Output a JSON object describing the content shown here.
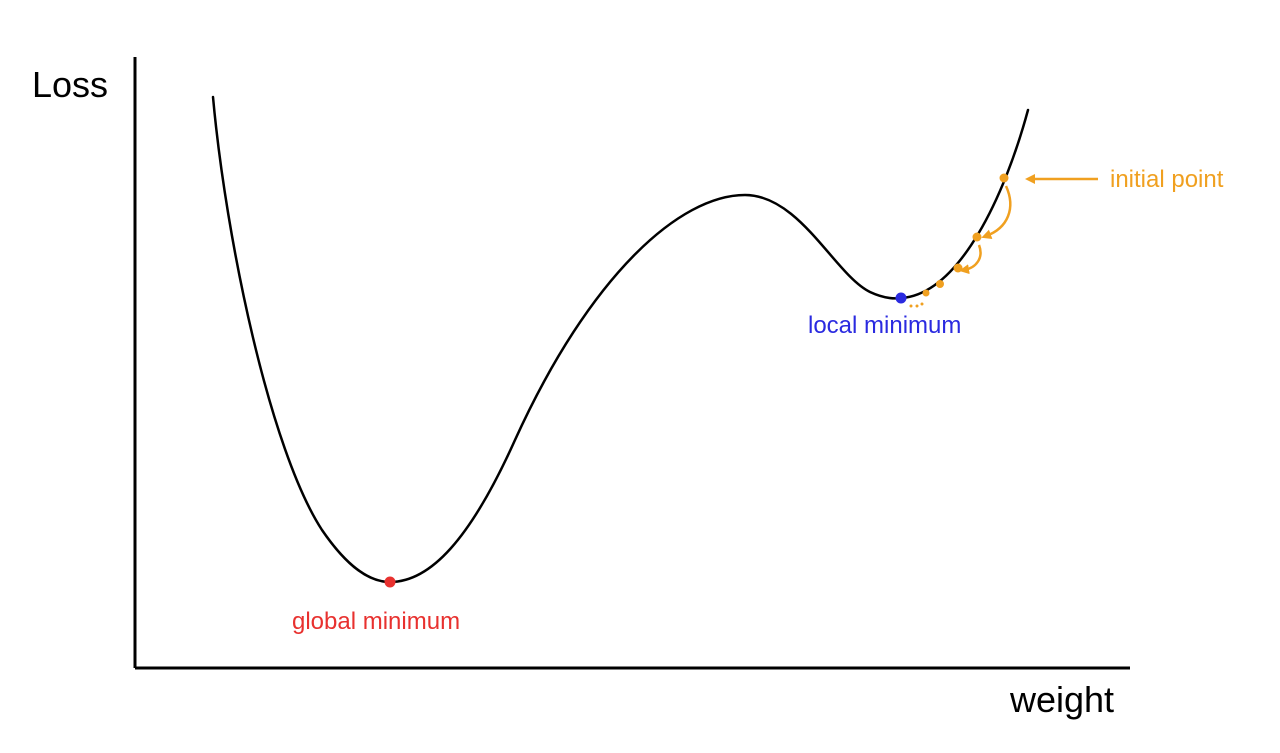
{
  "diagram": {
    "axes": {
      "y_label": "Loss",
      "x_label": "weight"
    },
    "annotations": {
      "global_minimum": "global minimum",
      "local_minimum": "local minimum",
      "initial_point": "initial point"
    },
    "colors": {
      "curve": "#000000",
      "axes": "#000000",
      "global_minimum": "#e8312f",
      "local_minimum": "#2a2ae0",
      "initial_point": "#f0a020"
    }
  }
}
